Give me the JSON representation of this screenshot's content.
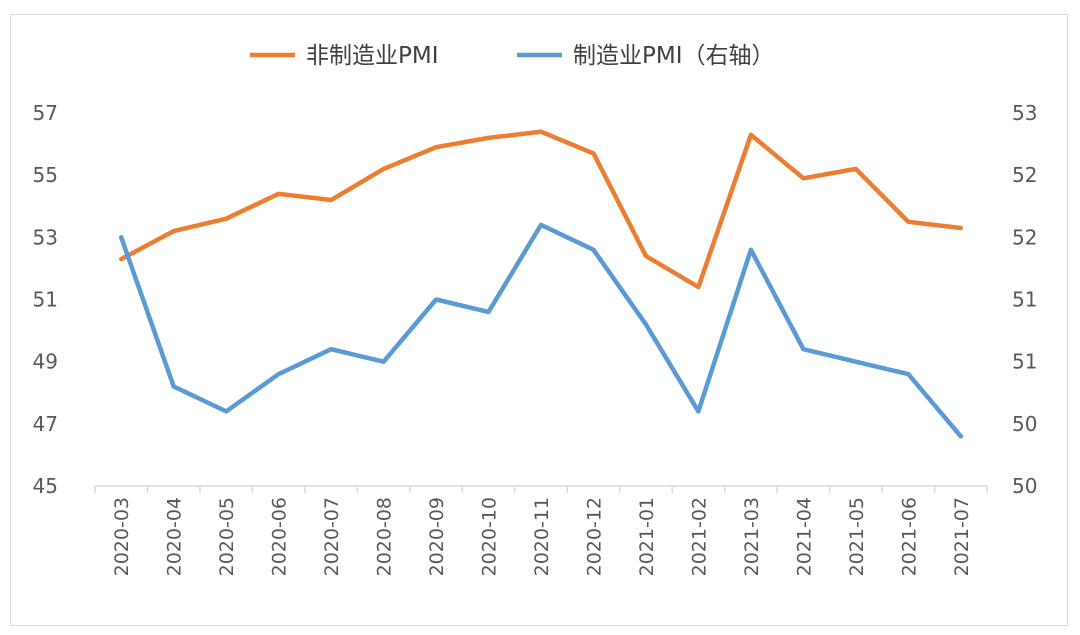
{
  "chart_data": {
    "type": "line",
    "title": "",
    "categories": [
      "2020-03",
      "2020-04",
      "2020-05",
      "2020-06",
      "2020-07",
      "2020-08",
      "2020-09",
      "2020-10",
      "2020-11",
      "2020-12",
      "2021-01",
      "2021-02",
      "2021-03",
      "2021-04",
      "2021-05",
      "2021-06",
      "2021-07"
    ],
    "legend_position": "top",
    "grid": false,
    "left_axis": {
      "ylim": [
        45,
        57
      ],
      "ticks": [
        "45",
        "47",
        "49",
        "51",
        "53",
        "55",
        "57"
      ]
    },
    "right_axis": {
      "ylim": [
        50,
        53
      ],
      "ticks": [
        "50",
        "50",
        "51",
        "51",
        "52",
        "52",
        "53"
      ]
    },
    "series": [
      {
        "name": "非制造业PMI",
        "axis": "left",
        "color": "#ED7D31",
        "values": [
          52.3,
          53.2,
          53.6,
          54.4,
          54.2,
          55.2,
          55.9,
          56.2,
          56.4,
          55.7,
          52.4,
          51.4,
          56.3,
          54.9,
          55.2,
          53.5,
          53.3
        ]
      },
      {
        "name": "制造业PMI（右轴）",
        "axis": "right",
        "color": "#5B9BD5",
        "values": [
          52.0,
          50.8,
          50.6,
          50.9,
          51.1,
          51.0,
          51.5,
          51.4,
          52.1,
          51.9,
          51.3,
          50.6,
          51.9,
          51.1,
          51.0,
          50.9,
          50.4
        ]
      }
    ]
  }
}
